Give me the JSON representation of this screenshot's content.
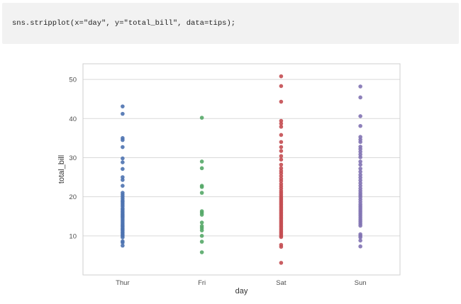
{
  "code_cell": {
    "code": "sns.stripplot(x=\"day\", y=\"total_bill\", data=tips);"
  },
  "chart_data": {
    "type": "scatter",
    "xlabel": "day",
    "ylabel": "total_bill",
    "categories": [
      "Thur",
      "Fri",
      "Sat",
      "Sun"
    ],
    "ylim": [
      0,
      54
    ],
    "yticks": [
      10,
      20,
      30,
      40,
      50
    ],
    "grid": true,
    "colors": {
      "Thur": "#4c72b0",
      "Fri": "#55a868",
      "Sat": "#c44e52",
      "Sun": "#8172b2",
      "grid": "#d9d9d9",
      "axes_border": "#cfcfcf",
      "tick_text": "#4d4d4d"
    },
    "series": [
      {
        "category": "Thur",
        "values": [
          43.1,
          41.2,
          35.0,
          34.5,
          32.7,
          29.8,
          28.8,
          27.1,
          25.0,
          24.3,
          22.8,
          21.0,
          20.5,
          20.0,
          19.5,
          19.0,
          18.7,
          18.3,
          17.9,
          17.5,
          17.0,
          16.7,
          16.3,
          16.0,
          15.6,
          15.3,
          15.0,
          14.7,
          14.3,
          13.9,
          13.5,
          13.1,
          12.7,
          12.4,
          12.0,
          11.7,
          11.4,
          11.0,
          10.7,
          10.3,
          10.0,
          9.6,
          8.6,
          8.3,
          7.5
        ]
      },
      {
        "category": "Fri",
        "values": [
          40.2,
          29.0,
          27.3,
          22.8,
          22.5,
          21.0,
          16.3,
          15.9,
          15.4,
          13.4,
          12.5,
          12.0,
          11.4,
          10.0,
          8.5,
          5.8
        ]
      },
      {
        "category": "Sat",
        "values": [
          50.8,
          48.3,
          44.3,
          39.4,
          38.7,
          37.9,
          35.8,
          34.0,
          32.7,
          31.7,
          30.4,
          29.5,
          28.2,
          27.3,
          26.6,
          26.0,
          25.3,
          24.6,
          24.0,
          23.3,
          22.7,
          22.1,
          21.5,
          21.0,
          20.5,
          20.0,
          19.6,
          19.2,
          18.8,
          18.4,
          18.0,
          17.6,
          17.2,
          16.8,
          16.4,
          16.0,
          15.6,
          15.2,
          14.8,
          14.4,
          14.0,
          13.6,
          13.2,
          12.8,
          12.4,
          12.0,
          11.6,
          11.2,
          10.8,
          10.4,
          10.0,
          9.7,
          7.7,
          7.2,
          3.1
        ]
      },
      {
        "category": "Sun",
        "values": [
          48.2,
          45.4,
          40.6,
          38.1,
          35.3,
          34.6,
          34.0,
          32.8,
          32.2,
          31.5,
          30.8,
          30.1,
          29.0,
          28.2,
          27.2,
          26.4,
          25.6,
          24.9,
          24.2,
          23.5,
          22.8,
          22.1,
          21.5,
          20.9,
          20.4,
          19.9,
          19.3,
          18.7,
          18.1,
          17.6,
          17.1,
          16.6,
          16.1,
          15.6,
          15.1,
          14.6,
          14.1,
          13.6,
          13.1,
          12.6,
          10.4,
          10.0,
          9.6,
          8.8,
          7.3
        ]
      }
    ]
  }
}
